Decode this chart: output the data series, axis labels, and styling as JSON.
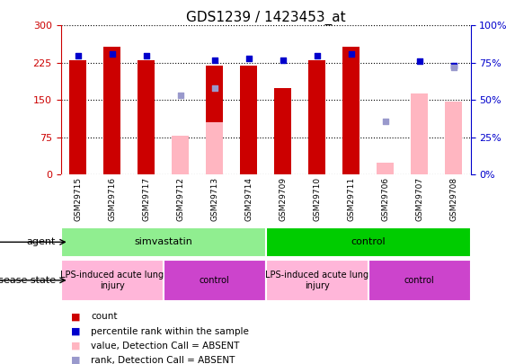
{
  "title": "GDS1239 / 1423453_at",
  "samples": [
    "GSM29715",
    "GSM29716",
    "GSM29717",
    "GSM29712",
    "GSM29713",
    "GSM29714",
    "GSM29709",
    "GSM29710",
    "GSM29711",
    "GSM29706",
    "GSM29707",
    "GSM29708"
  ],
  "count_values": [
    230,
    257,
    230,
    null,
    220,
    220,
    175,
    230,
    257,
    null,
    null,
    null
  ],
  "count_absent_values": [
    null,
    null,
    null,
    79,
    105,
    null,
    null,
    null,
    null,
    25,
    163,
    147
  ],
  "percentile_values": [
    80,
    81,
    80,
    null,
    77,
    78,
    77,
    80,
    81,
    null,
    76,
    73
  ],
  "rank_absent_values": [
    null,
    null,
    null,
    53,
    58,
    null,
    null,
    null,
    null,
    36,
    null,
    72
  ],
  "ylim_left": [
    0,
    300
  ],
  "ylim_right": [
    0,
    100
  ],
  "yticks_left": [
    0,
    75,
    150,
    225,
    300
  ],
  "yticks_right": [
    0,
    25,
    50,
    75,
    100
  ],
  "agent_groups": [
    {
      "label": "simvastatin",
      "start": 0,
      "end": 6,
      "color": "#90EE90"
    },
    {
      "label": "control",
      "start": 6,
      "end": 12,
      "color": "#00CC00"
    }
  ],
  "disease_groups": [
    {
      "label": "LPS-induced acute lung\ninjury",
      "start": 0,
      "end": 3,
      "color": "#FFB6D9"
    },
    {
      "label": "control",
      "start": 3,
      "end": 6,
      "color": "#CC44CC"
    },
    {
      "label": "LPS-induced acute lung\ninjury",
      "start": 6,
      "end": 9,
      "color": "#FFB6D9"
    },
    {
      "label": "control",
      "start": 9,
      "end": 12,
      "color": "#CC44CC"
    }
  ],
  "count_color": "#CC0000",
  "absent_bar_color": "#FFB6C1",
  "percentile_color": "#0000CC",
  "rank_absent_color": "#9999CC",
  "bg_color": "#FFFFFF",
  "xlabel_bg": "#C8C8C8",
  "xticklabel_fontsize": 6.5,
  "title_fontsize": 11,
  "legend_items": [
    {
      "color": "#CC0000",
      "label": "count"
    },
    {
      "color": "#0000CC",
      "label": "percentile rank within the sample"
    },
    {
      "color": "#FFB6C1",
      "label": "value, Detection Call = ABSENT"
    },
    {
      "color": "#9999CC",
      "label": "rank, Detection Call = ABSENT"
    }
  ]
}
